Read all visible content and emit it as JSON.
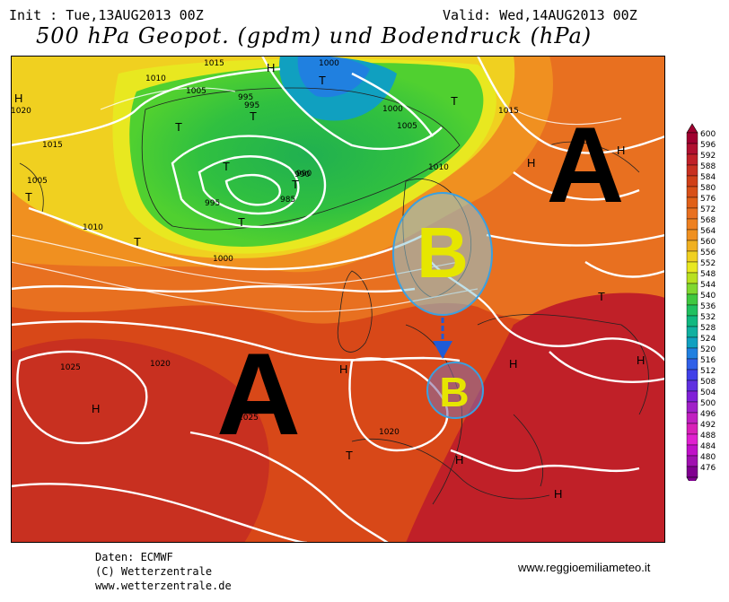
{
  "header": {
    "init": "Init : Tue,13AUG2013 00Z",
    "valid": "Valid: Wed,14AUG2013 00Z",
    "title": "500 hPa Geopot. (gpdm) und Bodendruck (hPa)"
  },
  "footer": {
    "source_lines": [
      "Daten: ECMWF",
      "(C) Wetterzentrale",
      "www.wetterzentrale.de"
    ],
    "site": "www.reggioemiliameteo.it"
  },
  "annotations": {
    "high_label": "A",
    "low_label": "B",
    "arrow_color": "#1e5bd8",
    "ellipse_color": "#3aa0e0",
    "letter_color": "#e6e600"
  },
  "isobar_labels": [
    "1015",
    "1010",
    "1005",
    "1000",
    "995",
    "990",
    "1020",
    "1025",
    "1020",
    "1015",
    "1010",
    "1005",
    "1000",
    "995",
    "990",
    "985",
    "1015",
    "1010",
    "1005",
    "1000",
    "995",
    "1020",
    "1025"
  ],
  "pressure_markers": [
    "H",
    "H",
    "H",
    "H",
    "H",
    "H",
    "H",
    "H",
    "H",
    "H",
    "T",
    "T",
    "T",
    "T",
    "T",
    "T",
    "T",
    "T",
    "T",
    "T",
    "T"
  ],
  "colorbar": {
    "levels": [
      "600",
      "596",
      "592",
      "588",
      "584",
      "580",
      "576",
      "572",
      "568",
      "564",
      "560",
      "556",
      "552",
      "548",
      "544",
      "540",
      "536",
      "532",
      "528",
      "524",
      "520",
      "516",
      "512",
      "508",
      "504",
      "500",
      "496",
      "492",
      "488",
      "484",
      "480",
      "476"
    ],
    "colors": [
      "#a00030",
      "#b01030",
      "#c02028",
      "#c83020",
      "#d04018",
      "#d85018",
      "#e06018",
      "#e87020",
      "#ee8020",
      "#f09020",
      "#f0b020",
      "#f0d020",
      "#e8e820",
      "#b8e020",
      "#80d830",
      "#40c840",
      "#20c060",
      "#10b880",
      "#10b0a0",
      "#10a0c0",
      "#2080e0",
      "#3060e8",
      "#4040e8",
      "#6030e0",
      "#8020d8",
      "#a020c8",
      "#c020c0",
      "#d820b8",
      "#e020d0",
      "#c010c8",
      "#a010b0",
      "#800090"
    ]
  }
}
